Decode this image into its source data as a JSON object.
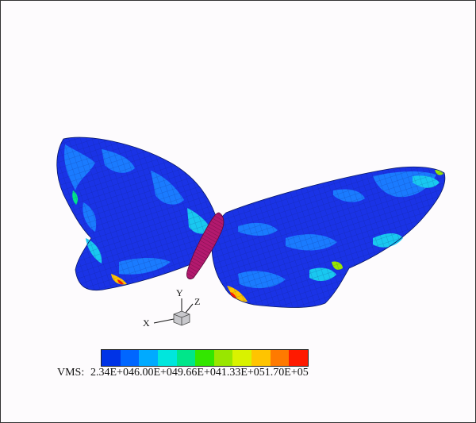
{
  "axes_triad": {
    "x_label": "X",
    "y_label": "Y",
    "z_label": "Z"
  },
  "legend": {
    "variable_label": "VMS:",
    "values_text": "2.34E+046.00E+049.66E+041.33E+051.70E+05",
    "colors": [
      "#0033e6",
      "#0066ff",
      "#00aaff",
      "#00e6dd",
      "#00e68a",
      "#33e600",
      "#99e600",
      "#d9f200",
      "#ffc400",
      "#ff7a00",
      "#ff1a00"
    ]
  },
  "colors": {
    "wing_base": "#1a33e6",
    "wing_light": "#1a7bff",
    "wing_cyan": "#19c8f0",
    "body": "#b3196e"
  }
}
